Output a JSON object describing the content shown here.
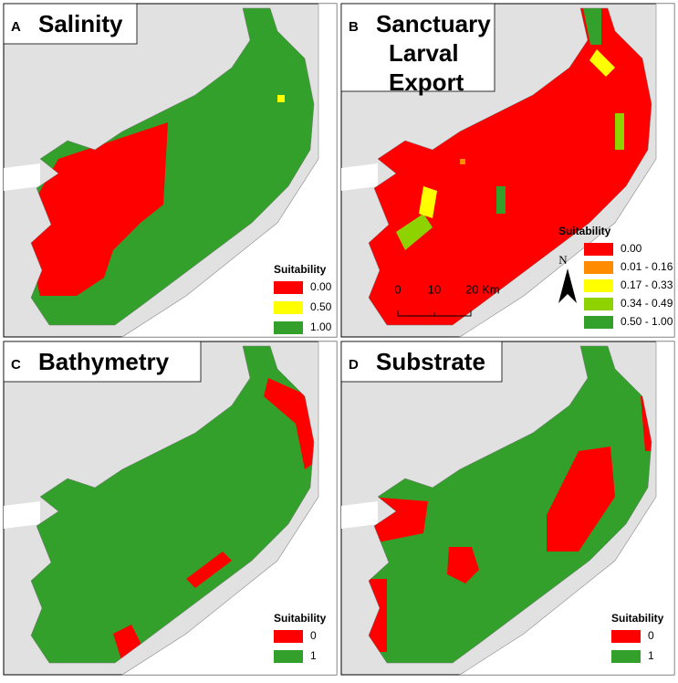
{
  "panels": [
    {
      "letter": "A",
      "title_lines": [
        "Salinity"
      ],
      "legend": {
        "title": "Suitability",
        "items": [
          {
            "label": "0.00",
            "color": "#ff0000"
          },
          {
            "label": "0.50",
            "color": "#ffff00"
          },
          {
            "label": "1.00",
            "color": "#33a02c"
          }
        ]
      }
    },
    {
      "letter": "B",
      "title_lines": [
        "Sanctuary",
        "Larval",
        "Export"
      ],
      "legend": {
        "title": "Suitability",
        "items": [
          {
            "label": "0.00",
            "color": "#ff0000"
          },
          {
            "label": "0.01 - 0.16",
            "color": "#ff8c00"
          },
          {
            "label": "0.17 - 0.33",
            "color": "#ffff00"
          },
          {
            "label": "0.34 - 0.49",
            "color": "#8ed300"
          },
          {
            "label": "0.50 - 1.00",
            "color": "#33a02c"
          }
        ]
      }
    },
    {
      "letter": "C",
      "title_lines": [
        "Bathymetry"
      ],
      "legend": {
        "title": "Suitability",
        "items": [
          {
            "label": "0",
            "color": "#ff0000"
          },
          {
            "label": "1",
            "color": "#33a02c"
          }
        ]
      }
    },
    {
      "letter": "D",
      "title_lines": [
        "Substrate"
      ],
      "legend": {
        "title": "Suitability",
        "items": [
          {
            "label": "0",
            "color": "#ff0000"
          },
          {
            "label": "1",
            "color": "#33a02c"
          }
        ]
      }
    }
  ],
  "scale_bar": {
    "labels": [
      "0",
      "10",
      "20 Km"
    ]
  },
  "north_arrow": "N"
}
